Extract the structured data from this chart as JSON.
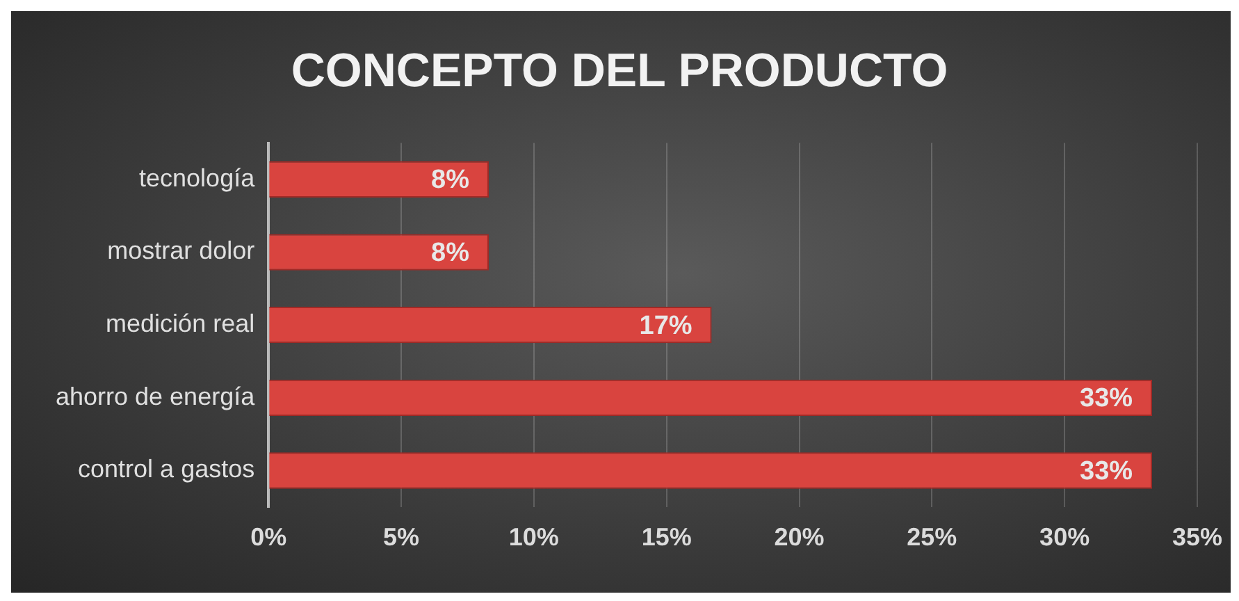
{
  "chart_data": {
    "type": "bar",
    "orientation": "horizontal",
    "title": "CONCEPTO DEL PRODUCTO",
    "categories": [
      "tecnología",
      "mostrar dolor",
      "medición real",
      "ahorro de energía",
      "control a gastos"
    ],
    "values": [
      8.3,
      8.3,
      16.7,
      33.3,
      33.3
    ],
    "value_labels": [
      "8%",
      "8%",
      "17%",
      "33%",
      "33%"
    ],
    "color": "#d9443f",
    "xlim": [
      0,
      35
    ],
    "xticks": [
      {
        "value": 0,
        "label": "0%"
      },
      {
        "value": 5,
        "label": "5%"
      },
      {
        "value": 10,
        "label": "10%"
      },
      {
        "value": 15,
        "label": "15%"
      },
      {
        "value": 20,
        "label": "20%"
      },
      {
        "value": 25,
        "label": "25%"
      },
      {
        "value": 30,
        "label": "30%"
      },
      {
        "value": 35,
        "label": "35%"
      }
    ],
    "grid": "x",
    "legend": false
  }
}
